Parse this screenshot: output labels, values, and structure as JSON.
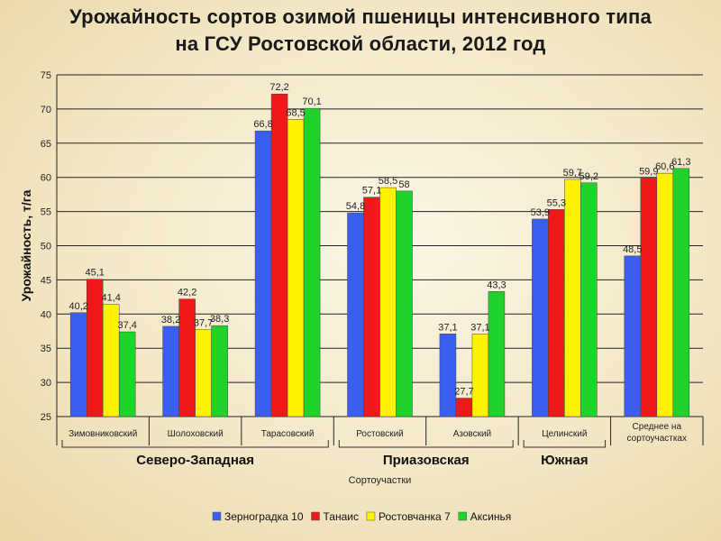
{
  "title_line1": "Урожайность сортов озимой пшеницы интенсивного типа",
  "title_line2": "на ГСУ Ростовской области, 2012 год",
  "chart_data": {
    "type": "bar",
    "ylabel": "Урожайность, т/га",
    "ylim": [
      25,
      75
    ],
    "yticks": [
      25,
      30,
      35,
      40,
      45,
      50,
      55,
      60,
      65,
      70,
      75
    ],
    "grid": true,
    "categories": [
      [
        "Зимовниковский"
      ],
      [
        "Шолоховский"
      ],
      [
        "Тарасовский"
      ],
      [
        "Ростовский"
      ],
      [
        "Азовский"
      ],
      [
        "Целинский"
      ],
      [
        "Среднее на",
        "сортоучастках"
      ]
    ],
    "series": [
      {
        "name": "Зерноградка 10",
        "color": "#3a5ff0",
        "values": [
          40.2,
          38.2,
          66.8,
          54.8,
          37.1,
          53.9,
          48.5
        ],
        "labels": [
          "40,2",
          "38,2",
          "66,8",
          "54,8",
          "37,1",
          "53,9",
          "48,5"
        ]
      },
      {
        "name": "Танаис",
        "color": "#f01818",
        "values": [
          45.1,
          42.2,
          72.2,
          57.1,
          27.7,
          55.3,
          59.9
        ],
        "labels": [
          "45,1",
          "42,2",
          "72,2",
          "57,1",
          "27,7",
          "55,3",
          "59,9"
        ]
      },
      {
        "name": "Ростовчанка 7",
        "color": "#fff200",
        "values": [
          41.4,
          37.7,
          68.5,
          58.5,
          37.1,
          59.7,
          60.6
        ],
        "labels": [
          "41,4",
          "37,7",
          "68,5",
          "58,5",
          "37,1",
          "59,7",
          "60,6"
        ]
      },
      {
        "name": "Аксинья",
        "color": "#1fd32a",
        "values": [
          37.4,
          38.3,
          70.1,
          58.0,
          43.3,
          59.2,
          61.3
        ],
        "labels": [
          "37,4",
          "38,3",
          "70,1",
          "58",
          "43,3",
          "59,2",
          "61,3"
        ]
      }
    ],
    "regions": [
      {
        "label": "Северо-Западная",
        "categories": [
          0,
          1,
          2
        ]
      },
      {
        "label": "Приазовская",
        "categories": [
          3,
          4
        ]
      },
      {
        "label": "Южная",
        "categories": [
          5
        ]
      }
    ],
    "group_caption": "Сортоучастки",
    "legend_position": "bottom"
  }
}
